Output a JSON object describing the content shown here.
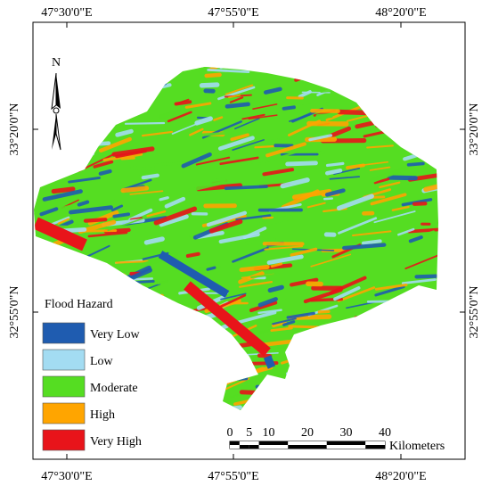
{
  "map": {
    "coordinates": {
      "top": [
        "47°30'0\"E",
        "47°55'0\"E",
        "48°20'0\"E"
      ],
      "bottom": [
        "47°30'0\"E",
        "47°55'0\"E",
        "48°20'0\"E"
      ],
      "left": [
        "33°20'0\"N",
        "32°55'0\"N"
      ],
      "right": [
        "33°20'0\"N",
        "32°55'0\"N"
      ]
    },
    "north_label": "N",
    "legend": {
      "title": "Flood Hazard",
      "items": [
        {
          "label": "Very Low",
          "color": "#1f5cb0"
        },
        {
          "label": "Low",
          "color": "#a3dcf2"
        },
        {
          "label": "Moderate",
          "color": "#55dd22"
        },
        {
          "label": "High",
          "color": "#ffa500"
        },
        {
          "label": "Very High",
          "color": "#e8141a"
        }
      ]
    },
    "scale_bar": {
      "ticks": [
        0,
        5,
        10,
        20,
        30,
        40
      ],
      "unit": "Kilometers"
    }
  }
}
